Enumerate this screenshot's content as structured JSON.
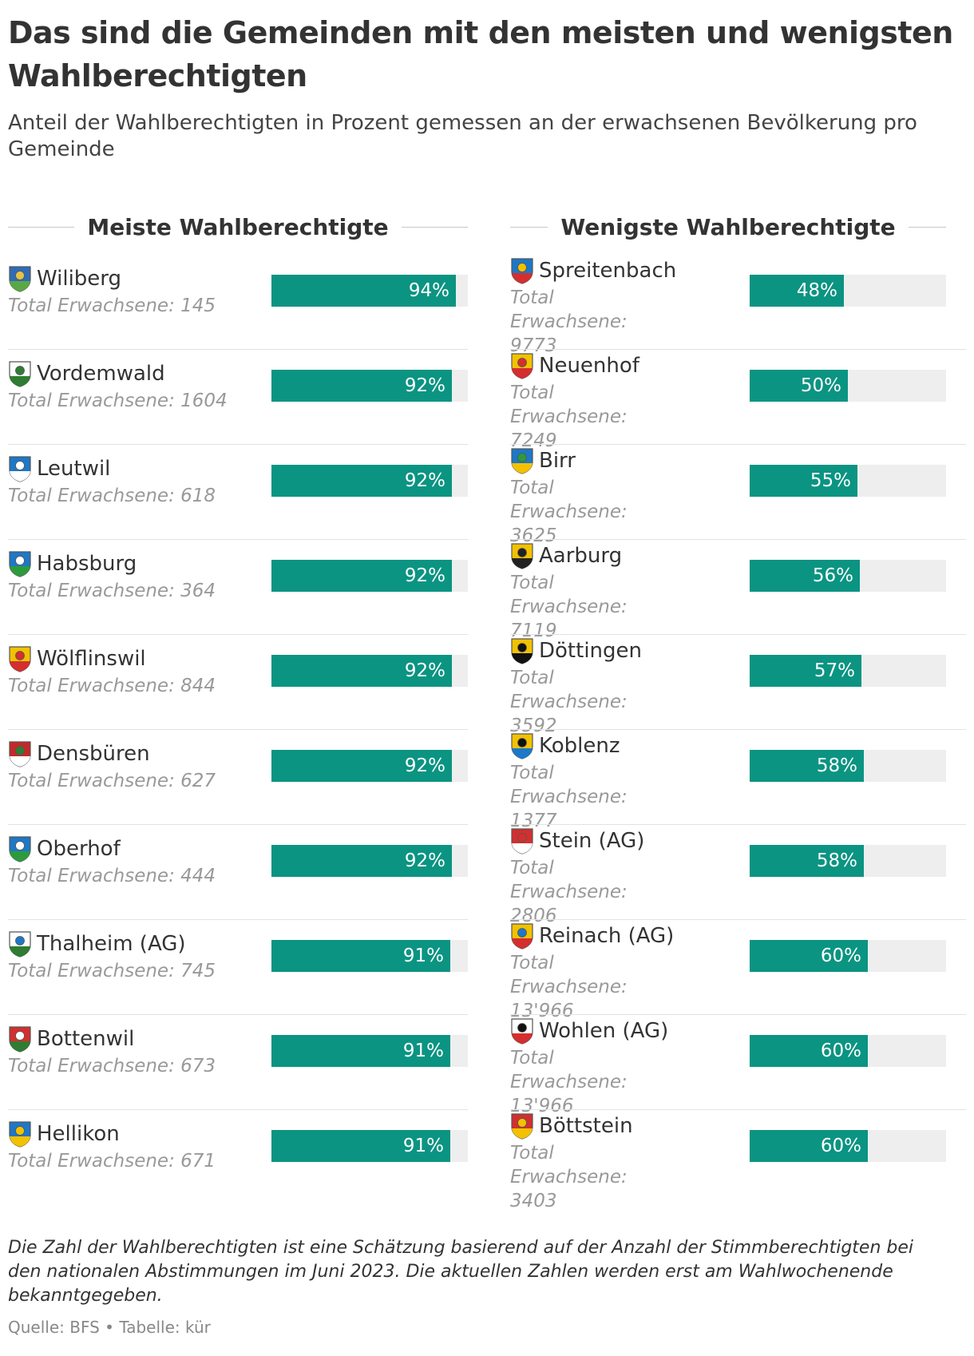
{
  "title": "Das sind die Gemeinden mit den meisten und wenigsten Wahlberechtigten",
  "subtitle": "Anteil der Wahlberechtigten in Prozent gemessen an der erwachsenen Bevölkerung pro Gemeinde",
  "chart_data": [
    {
      "type": "bar",
      "heading": "Meiste Wahlberechtigte",
      "unit": "%",
      "max": 100,
      "rows": [
        {
          "name": "Wiliberg",
          "sub": "Total Erwachsene: 145",
          "value": 94,
          "label": "94%",
          "icon": "crest-wiliberg",
          "colors": [
            "#2f6cb7",
            "#5aa845",
            "#e2c34a"
          ]
        },
        {
          "name": "Vordemwald",
          "sub": "Total Erwachsene: 1604",
          "value": 92,
          "label": "92%",
          "icon": "crest-vordemwald",
          "colors": [
            "#ffffff",
            "#2e7d32",
            "#2e7d32"
          ]
        },
        {
          "name": "Leutwil",
          "sub": "Total Erwachsene: 618",
          "value": 92,
          "label": "92%",
          "icon": "crest-leutwil",
          "colors": [
            "#1d78c8",
            "#ffffff",
            "#ffffff"
          ]
        },
        {
          "name": "Habsburg",
          "sub": "Total Erwachsene: 364",
          "value": 92,
          "label": "92%",
          "icon": "crest-habsburg",
          "colors": [
            "#1d78c8",
            "#2e9a3e",
            "#ffffff"
          ]
        },
        {
          "name": "Wölflinswil",
          "sub": "Total Erwachsene: 844",
          "value": 92,
          "label": "92%",
          "icon": "crest-woelflinswil",
          "colors": [
            "#f2c200",
            "#d32f2f",
            "#d32f2f"
          ]
        },
        {
          "name": "Densbüren",
          "sub": "Total Erwachsene: 627",
          "value": 92,
          "label": "92%",
          "icon": "crest-densbueren",
          "colors": [
            "#c62828",
            "#ffffff",
            "#2e7d32"
          ]
        },
        {
          "name": "Oberhof",
          "sub": "Total Erwachsene: 444",
          "value": 92,
          "label": "92%",
          "icon": "crest-oberhof",
          "colors": [
            "#1d78c8",
            "#2e9a3e",
            "#ffffff"
          ]
        },
        {
          "name": "Thalheim (AG)",
          "sub": "Total Erwachsene: 745",
          "value": 91,
          "label": "91%",
          "icon": "crest-thalheim",
          "colors": [
            "#ffffff",
            "#2e7d32",
            "#1d78c8"
          ]
        },
        {
          "name": "Bottenwil",
          "sub": "Total Erwachsene: 673",
          "value": 91,
          "label": "91%",
          "icon": "crest-bottenwil",
          "colors": [
            "#d32f2f",
            "#2e7d32",
            "#ffffff"
          ]
        },
        {
          "name": "Hellikon",
          "sub": "Total Erwachsene: 671",
          "value": 91,
          "label": "91%",
          "icon": "crest-hellikon",
          "colors": [
            "#1d78c8",
            "#f2c200",
            "#f2c200"
          ]
        }
      ]
    },
    {
      "type": "bar",
      "heading": "Wenigste Wahlberechtigte",
      "unit": "%",
      "max": 100,
      "rows": [
        {
          "name": "Spreitenbach",
          "sub": "Total Erwachsene: 9773",
          "value": 48,
          "label": "48%",
          "icon": "crest-spreitenbach",
          "colors": [
            "#1d78c8",
            "#d32f2f",
            "#f2c200"
          ]
        },
        {
          "name": "Neuenhof",
          "sub": "Total Erwachsene: 7249",
          "value": 50,
          "label": "50%",
          "icon": "crest-neuenhof",
          "colors": [
            "#f2c200",
            "#d32f2f",
            "#d32f2f"
          ]
        },
        {
          "name": "Birr",
          "sub": "Total Erwachsene: 3625",
          "value": 55,
          "label": "55%",
          "icon": "crest-birr",
          "colors": [
            "#1d78c8",
            "#f2c200",
            "#2e9a3e"
          ]
        },
        {
          "name": "Aarburg",
          "sub": "Total Erwachsene: 7119",
          "value": 56,
          "label": "56%",
          "icon": "crest-aarburg",
          "colors": [
            "#f2c200",
            "#222222",
            "#222222"
          ]
        },
        {
          "name": "Döttingen",
          "sub": "Total Erwachsene: 3592",
          "value": 57,
          "label": "57%",
          "icon": "crest-doettingen",
          "colors": [
            "#f2c200",
            "#111111",
            "#111111"
          ]
        },
        {
          "name": "Koblenz",
          "sub": "Total Erwachsene: 1377",
          "value": 58,
          "label": "58%",
          "icon": "crest-koblenz",
          "colors": [
            "#f2c200",
            "#1d78c8",
            "#111111"
          ]
        },
        {
          "name": "Stein (AG)",
          "sub": "Total Erwachsene: 2806",
          "value": 58,
          "label": "58%",
          "icon": "crest-stein",
          "colors": [
            "#d32f2f",
            "#ffffff",
            "#d32f2f"
          ]
        },
        {
          "name": "Reinach (AG)",
          "sub": "Total Erwachsene: 13'966",
          "value": 60,
          "label": "60%",
          "icon": "crest-reinach",
          "colors": [
            "#f2c200",
            "#d32f2f",
            "#1d78c8"
          ]
        },
        {
          "name": "Wohlen (AG)",
          "sub": "Total Erwachsene: 13'966",
          "value": 60,
          "label": "60%",
          "icon": "crest-wohlen",
          "colors": [
            "#ffffff",
            "#d32f2f",
            "#111111"
          ]
        },
        {
          "name": "Böttstein",
          "sub": "Total Erwachsene: 3403",
          "value": 60,
          "label": "60%",
          "icon": "crest-boettstein",
          "colors": [
            "#d32f2f",
            "#f2c200",
            "#f2c200"
          ]
        }
      ]
    }
  ],
  "note": "Die Zahl der Wahlberechtigten ist eine Schätzung basierend auf der Anzahl der Stimmberechtigten bei den nationalen Abstimmungen im Juni 2023. Die aktuellen Zahlen werden erst am Wahlwochenende bekanntgegeben.",
  "source": "Quelle: BFS • Tabelle: kür"
}
